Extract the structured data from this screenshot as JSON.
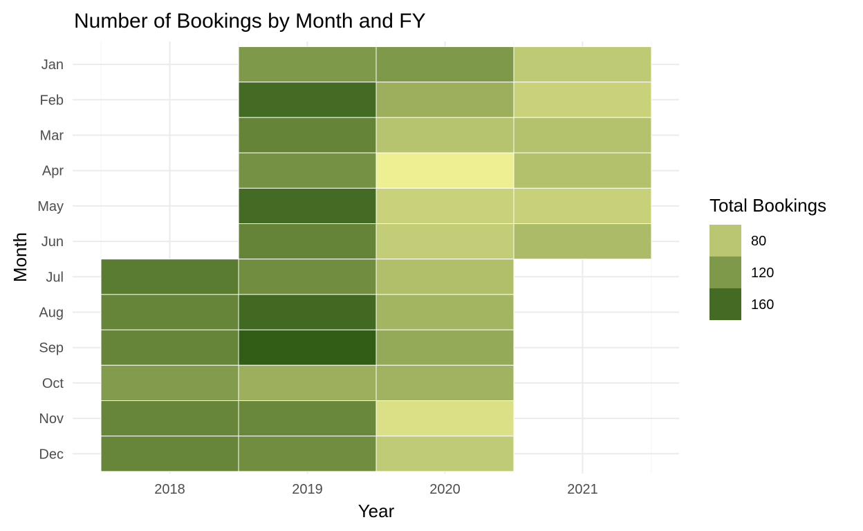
{
  "chart_data": {
    "type": "heatmap",
    "title": "Number of Bookings by Month and FY",
    "xlabel": "Year",
    "ylabel": "Month",
    "x": [
      "2018",
      "2019",
      "2020",
      "2021"
    ],
    "y": [
      "Jan",
      "Feb",
      "Mar",
      "Apr",
      "May",
      "Jun",
      "Jul",
      "Aug",
      "Sep",
      "Oct",
      "Nov",
      "Dec"
    ],
    "grid": true,
    "legend": {
      "title": "Total Bookings",
      "position": "right",
      "breaks": [
        80,
        120,
        160
      ]
    },
    "color_scale": {
      "low_value": 45,
      "high_value": 175,
      "low_color": "#eeee93",
      "high_color": "#2e5a14"
    },
    "cells": [
      {
        "x": "2019",
        "y": "Jan",
        "value": 120
      },
      {
        "x": "2019",
        "y": "Feb",
        "value": 160
      },
      {
        "x": "2019",
        "y": "Mar",
        "value": 138
      },
      {
        "x": "2019",
        "y": "Apr",
        "value": 127
      },
      {
        "x": "2019",
        "y": "May",
        "value": 160
      },
      {
        "x": "2019",
        "y": "Jun",
        "value": 138
      },
      {
        "x": "2019",
        "y": "Jul",
        "value": 130
      },
      {
        "x": "2019",
        "y": "Aug",
        "value": 162
      },
      {
        "x": "2019",
        "y": "Sep",
        "value": 172
      },
      {
        "x": "2019",
        "y": "Oct",
        "value": 100
      },
      {
        "x": "2019",
        "y": "Nov",
        "value": 135
      },
      {
        "x": "2019",
        "y": "Dec",
        "value": 130
      },
      {
        "x": "2020",
        "y": "Jan",
        "value": 120
      },
      {
        "x": "2020",
        "y": "Feb",
        "value": 100
      },
      {
        "x": "2020",
        "y": "Mar",
        "value": 82
      },
      {
        "x": "2020",
        "y": "Apr",
        "value": 45
      },
      {
        "x": "2020",
        "y": "May",
        "value": 70
      },
      {
        "x": "2020",
        "y": "Jun",
        "value": 74
      },
      {
        "x": "2020",
        "y": "Jul",
        "value": 86
      },
      {
        "x": "2020",
        "y": "Aug",
        "value": 95
      },
      {
        "x": "2020",
        "y": "Sep",
        "value": 105
      },
      {
        "x": "2020",
        "y": "Oct",
        "value": 97
      },
      {
        "x": "2020",
        "y": "Nov",
        "value": 58
      },
      {
        "x": "2020",
        "y": "Dec",
        "value": 76
      },
      {
        "x": "2021",
        "y": "Jan",
        "value": 77
      },
      {
        "x": "2021",
        "y": "Feb",
        "value": 70
      },
      {
        "x": "2021",
        "y": "Mar",
        "value": 84
      },
      {
        "x": "2021",
        "y": "Apr",
        "value": 85
      },
      {
        "x": "2021",
        "y": "May",
        "value": 71
      },
      {
        "x": "2021",
        "y": "Jun",
        "value": 90
      },
      {
        "x": "2018",
        "y": "Jul",
        "value": 145
      },
      {
        "x": "2018",
        "y": "Aug",
        "value": 137
      },
      {
        "x": "2018",
        "y": "Sep",
        "value": 137
      },
      {
        "x": "2018",
        "y": "Oct",
        "value": 118
      },
      {
        "x": "2018",
        "y": "Nov",
        "value": 136
      },
      {
        "x": "2018",
        "y": "Dec",
        "value": 136
      }
    ]
  }
}
